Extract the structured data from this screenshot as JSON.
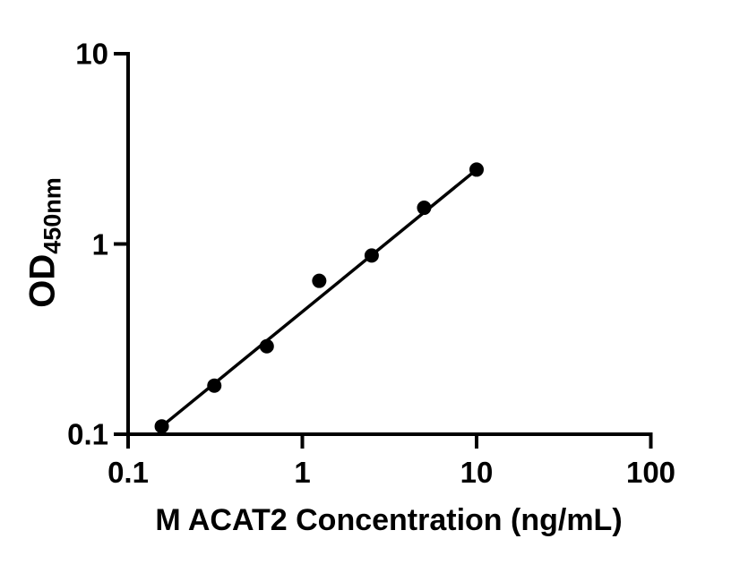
{
  "chart_data": {
    "type": "scatter",
    "title": "",
    "xlabel": "M ACAT2 Concentration (ng/mL)",
    "ylabel_main": "OD",
    "ylabel_sub": "450nm",
    "x_scale": "log",
    "y_scale": "log",
    "xlim": [
      0.1,
      100
    ],
    "ylim": [
      0.1,
      10
    ],
    "x_ticks": [
      0.1,
      1,
      10,
      100
    ],
    "x_tick_labels": [
      "0.1",
      "1",
      "10",
      "100"
    ],
    "y_ticks": [
      10,
      1,
      0.1
    ],
    "y_tick_labels": [
      "10",
      "1",
      "0.1"
    ],
    "x": [
      0.156,
      0.3125,
      0.625,
      1.25,
      2.5,
      5,
      10
    ],
    "y": [
      0.11,
      0.18,
      0.29,
      0.64,
      0.87,
      1.55,
      2.46
    ],
    "trend_line": {
      "x1": 0.156,
      "y1": 0.11,
      "x2": 10,
      "y2": 2.46
    },
    "grid": "off",
    "legend": "none",
    "marker_color": "#000000",
    "line_color": "#000000",
    "axis_color": "#000000",
    "background_color": "#ffffff"
  }
}
